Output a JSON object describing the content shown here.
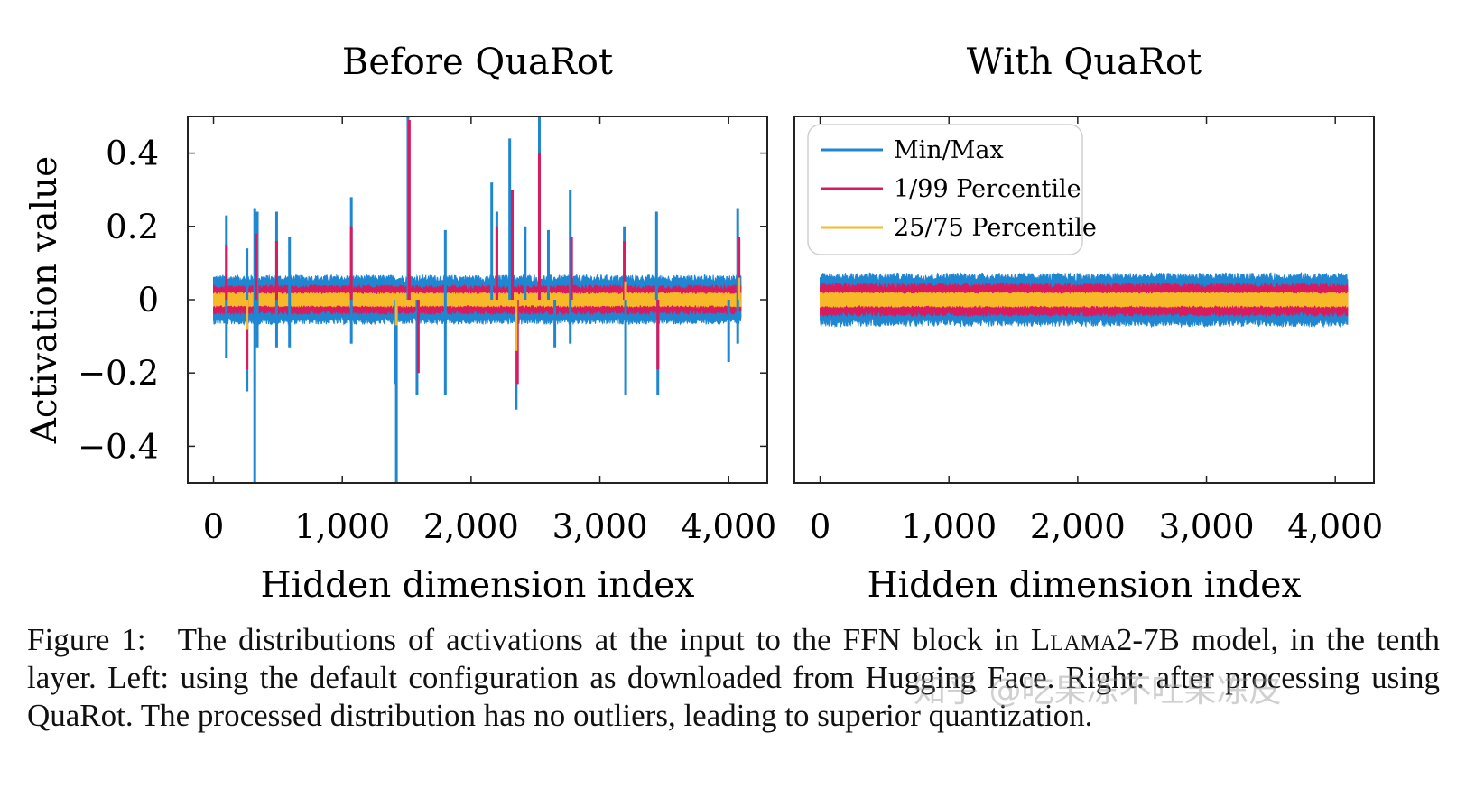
{
  "chart_data": [
    {
      "type": "line",
      "title": "Before QuaRot",
      "xlabel": "Hidden dimension index",
      "ylabel": "Activation value",
      "xlim": [
        -200,
        4300
      ],
      "ylim": [
        -0.5,
        0.5
      ],
      "xticks": [
        0,
        1000,
        2000,
        3000,
        4000
      ],
      "xtick_labels": [
        "0",
        "1,000",
        "2,000",
        "3,000",
        "4,000"
      ],
      "yticks": [
        0.4,
        0.2,
        0,
        -0.2,
        -0.4
      ],
      "ytick_labels": [
        "0.4",
        "0.2",
        "0",
        "−0.2",
        "−0.4"
      ],
      "series": [
        {
          "name": "Min/Max",
          "color": "#1f86d2",
          "band_low": -0.06,
          "band_high": 0.06,
          "outliers": [
            [
              100,
              0.23
            ],
            [
              100,
              -0.16
            ],
            [
              260,
              0.14
            ],
            [
              260,
              -0.25
            ],
            [
              320,
              0.25
            ],
            [
              320,
              -0.5
            ],
            [
              340,
              0.24
            ],
            [
              340,
              -0.13
            ],
            [
              490,
              0.24
            ],
            [
              490,
              -0.13
            ],
            [
              590,
              0.17
            ],
            [
              590,
              -0.13
            ],
            [
              1070,
              0.28
            ],
            [
              1070,
              -0.12
            ],
            [
              1410,
              -0.23
            ],
            [
              1420,
              -0.5
            ],
            [
              1510,
              0.5
            ],
            [
              1580,
              -0.26
            ],
            [
              1800,
              0.19
            ],
            [
              1800,
              -0.26
            ],
            [
              2160,
              0.32
            ],
            [
              2200,
              0.24
            ],
            [
              2300,
              0.44
            ],
            [
              2350,
              -0.3
            ],
            [
              2420,
              0.2
            ],
            [
              2530,
              0.5
            ],
            [
              2600,
              0.19
            ],
            [
              2650,
              -0.13
            ],
            [
              2770,
              0.3
            ],
            [
              2770,
              -0.12
            ],
            [
              3190,
              0.2
            ],
            [
              3200,
              -0.26
            ],
            [
              3440,
              0.24
            ],
            [
              3450,
              -0.26
            ],
            [
              4070,
              0.25
            ],
            [
              4070,
              -0.12
            ],
            [
              4000,
              -0.17
            ]
          ]
        },
        {
          "name": "1/99 Percentile",
          "color": "#d81b60",
          "band_low": -0.035,
          "band_high": 0.035,
          "outliers": [
            [
              100,
              0.15
            ],
            [
              260,
              -0.19
            ],
            [
              330,
              0.18
            ],
            [
              490,
              0.16
            ],
            [
              1070,
              0.2
            ],
            [
              1520,
              0.49
            ],
            [
              1590,
              -0.2
            ],
            [
              2200,
              0.2
            ],
            [
              2320,
              0.3
            ],
            [
              2360,
              -0.23
            ],
            [
              2530,
              0.4
            ],
            [
              2780,
              0.17
            ],
            [
              3190,
              0.16
            ],
            [
              3450,
              -0.19
            ],
            [
              4080,
              0.17
            ]
          ]
        },
        {
          "name": "25/75 Percentile",
          "color": "#f7b928",
          "band_low": -0.017,
          "band_high": 0.017,
          "outliers": [
            [
              260,
              -0.08
            ],
            [
              1420,
              -0.07
            ],
            [
              2350,
              -0.14
            ],
            [
              3200,
              0.05
            ],
            [
              4080,
              0.06
            ]
          ]
        }
      ]
    },
    {
      "type": "line",
      "title": "With QuaRot",
      "xlabel": "Hidden dimension index",
      "xlim": [
        -200,
        4300
      ],
      "ylim": [
        -0.5,
        0.5
      ],
      "xticks": [
        0,
        1000,
        2000,
        3000,
        4000
      ],
      "xtick_labels": [
        "0",
        "1,000",
        "2,000",
        "3,000",
        "4,000"
      ],
      "legend": "top-left",
      "series": [
        {
          "name": "Min/Max",
          "color": "#1f86d2",
          "band_low": -0.065,
          "band_high": 0.065,
          "outliers": []
        },
        {
          "name": "1/99 Percentile",
          "color": "#d81b60",
          "band_low": -0.04,
          "band_high": 0.04,
          "outliers": []
        },
        {
          "name": "25/75 Percentile",
          "color": "#f7b928",
          "band_low": -0.018,
          "band_high": 0.018,
          "outliers": []
        }
      ]
    }
  ],
  "caption": {
    "text_1": "Figure 1: The distributions of activations at the input to the FFN block in ",
    "model": "Llama2-7B",
    "text_2": " model, in the tenth layer. Left: using the default configuration as downloaded from Hugging Face. Right: after processing using QuaRot. The processed distribution has no outliers, leading to superior quantization."
  },
  "watermark": "知乎 @吃果冻不吐果冻皮"
}
